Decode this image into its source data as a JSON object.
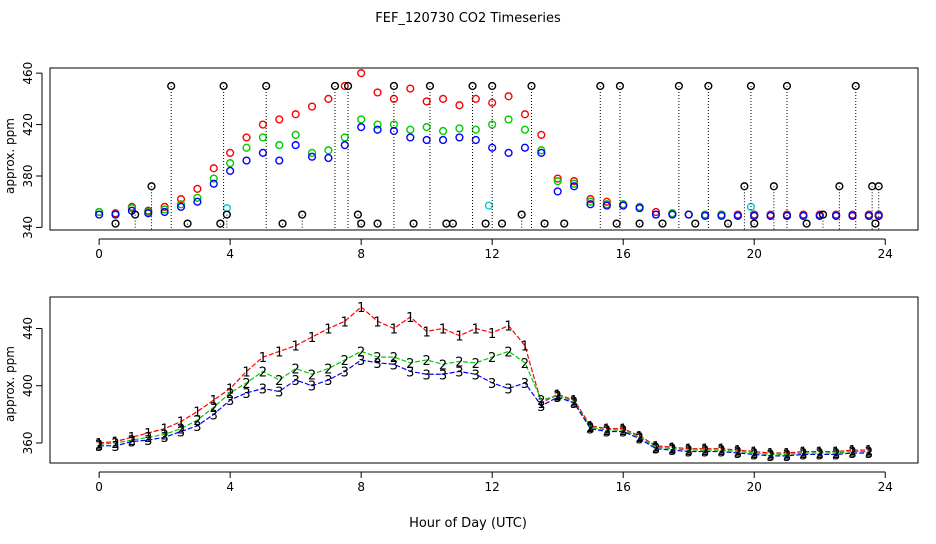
{
  "figure": {
    "title": "FEF_120730  CO2 Timeseries",
    "xlabel": "Hour of Day (UTC)"
  },
  "colors": {
    "series1": "#ff0000",
    "series2": "#00cc00",
    "series3": "#0000ff",
    "series4": "#00cccc",
    "extra": "#000000",
    "dropline": "#000000"
  },
  "chart_data": [
    {
      "type": "scatter",
      "panel": "top",
      "title": "FEF_120730  CO2 Timeseries",
      "ylabel": "approx. ppm",
      "xlim": [
        -1.5,
        25
      ],
      "ylim": [
        338,
        464
      ],
      "xticks": [
        0,
        4,
        8,
        12,
        16,
        20,
        24
      ],
      "yticks": [
        340,
        380,
        420,
        460
      ],
      "series": [
        {
          "color_key": "series1",
          "x": [
            0,
            0.5,
            1,
            1.5,
            2,
            2.5,
            3,
            3.5,
            4,
            4.5,
            5,
            5.5,
            6,
            6.5,
            7,
            7.5,
            8,
            8.5,
            9,
            9.5,
            10,
            10.5,
            11,
            11.5,
            12,
            12.5,
            13,
            13.5,
            14,
            14.5,
            15,
            15.5,
            16,
            16.5,
            17,
            17.5,
            18,
            18.5,
            19,
            19.5,
            20,
            20.5,
            21,
            21.5,
            22,
            22.5,
            23,
            23.5,
            23.8
          ],
          "y": [
            352,
            351,
            356,
            353,
            356,
            362,
            370,
            386,
            398,
            410,
            420,
            424,
            428,
            434,
            440,
            450,
            460,
            445,
            440,
            448,
            438,
            440,
            435,
            440,
            437,
            442,
            428,
            412,
            378,
            376,
            362,
            360,
            358,
            356,
            352,
            351,
            350,
            350,
            350,
            350,
            350,
            350,
            350,
            350,
            350,
            350,
            350,
            350,
            350
          ]
        },
        {
          "color_key": "series2",
          "x": [
            0,
            0.5,
            1,
            1.5,
            2,
            2.5,
            3,
            3.5,
            4,
            4.5,
            5,
            5.5,
            6,
            6.5,
            7,
            7.5,
            8,
            8.5,
            9,
            9.5,
            10,
            10.5,
            11,
            11.5,
            12,
            12.5,
            13,
            13.5,
            14,
            14.5,
            15,
            15.5,
            16,
            16.5,
            17,
            17.5,
            18,
            18.5,
            19,
            19.5,
            20,
            20.5,
            21,
            21.5,
            22,
            22.5,
            23,
            23.5,
            23.8
          ],
          "y": [
            352,
            350,
            355,
            352,
            354,
            358,
            363,
            378,
            390,
            402,
            410,
            404,
            412,
            398,
            400,
            410,
            424,
            420,
            420,
            416,
            418,
            415,
            417,
            416,
            420,
            424,
            416,
            400,
            376,
            374,
            360,
            358,
            358,
            356,
            350,
            351,
            350,
            350,
            350,
            349,
            349,
            349,
            349,
            349,
            349,
            349,
            349,
            349,
            349
          ]
        },
        {
          "color_key": "series3",
          "x": [
            0,
            0.5,
            1,
            1.5,
            2,
            2.5,
            3,
            3.5,
            4,
            4.5,
            5,
            5.5,
            6,
            6.5,
            7,
            7.5,
            8,
            8.5,
            9,
            9.5,
            10,
            10.5,
            11,
            11.5,
            12,
            12.5,
            13,
            13.5,
            14,
            14.5,
            15,
            15.5,
            16,
            16.5,
            17,
            17.5,
            18,
            18.5,
            19,
            19.5,
            20,
            20.5,
            21,
            21.5,
            22,
            22.5,
            23,
            23.5,
            23.8
          ],
          "y": [
            350,
            350,
            353,
            351,
            352,
            356,
            360,
            374,
            384,
            392,
            398,
            392,
            404,
            395,
            394,
            404,
            418,
            416,
            415,
            410,
            408,
            408,
            410,
            408,
            402,
            398,
            402,
            398,
            368,
            372,
            358,
            357,
            357,
            355,
            350,
            350,
            350,
            349,
            349,
            349,
            349,
            349,
            349,
            349,
            349,
            349,
            349,
            349,
            349
          ]
        },
        {
          "color_key": "series4",
          "x": [
            3.9,
            11.9,
            19.9
          ],
          "y": [
            355,
            357,
            356
          ]
        },
        {
          "color_key": "extra",
          "dropline": true,
          "x": [
            0.5,
            1.1,
            1.6,
            2.2,
            2.7,
            3.7,
            3.9,
            3.8,
            5.1,
            5.6,
            6.2,
            7.2,
            7.6,
            7.9,
            8.0,
            8.5,
            9.0,
            9.6,
            10.1,
            10.6,
            10.8,
            11.4,
            11.8,
            12.0,
            12.3,
            12.9,
            13.2,
            13.6,
            14.2,
            15.3,
            15.8,
            15.9,
            16.5,
            17.2,
            17.7,
            18.2,
            18.6,
            19.2,
            19.7,
            19.9,
            20.0,
            20.6,
            21.0,
            21.6,
            22.1,
            22.6,
            23.1,
            23.6,
            23.7,
            23.8
          ],
          "y": [
            343,
            350,
            372,
            450,
            343,
            343,
            350,
            450,
            450,
            343,
            350,
            450,
            450,
            350,
            343,
            343,
            450,
            343,
            450,
            343,
            343,
            450,
            343,
            450,
            343,
            350,
            450,
            343,
            343,
            450,
            343,
            450,
            343,
            343,
            450,
            343,
            450,
            343,
            372,
            450,
            343,
            372,
            450,
            343,
            350,
            372,
            450,
            372,
            343,
            372
          ]
        }
      ]
    },
    {
      "type": "line",
      "panel": "bottom",
      "ylabel": "approx. ppm",
      "xlim": [
        -1.5,
        25
      ],
      "ylim": [
        346,
        462
      ],
      "xticks": [
        0,
        4,
        8,
        12,
        16,
        20,
        24
      ],
      "yticks": [
        360,
        400,
        440
      ],
      "series": [
        {
          "label": "1",
          "color_key": "series1",
          "x": [
            0,
            0.5,
            1,
            1.5,
            2,
            2.5,
            3,
            3.5,
            4,
            4.5,
            5,
            5.5,
            6,
            6.5,
            7,
            7.5,
            8,
            8.5,
            9,
            9.5,
            10,
            10.5,
            11,
            11.5,
            12,
            12.5,
            13,
            13.5,
            14,
            14.5,
            15,
            15.5,
            16,
            16.5,
            17,
            17.5,
            18,
            18.5,
            19,
            19.5,
            20,
            20.5,
            21,
            21.5,
            22,
            22.5,
            23,
            23.5
          ],
          "y": [
            360,
            361,
            364,
            367,
            370,
            375,
            382,
            390,
            398,
            410,
            420,
            424,
            428,
            434,
            440,
            445,
            455,
            445,
            440,
            448,
            438,
            440,
            435,
            440,
            437,
            442,
            428,
            388,
            394,
            390,
            372,
            370,
            370,
            365,
            358,
            357,
            356,
            356,
            356,
            355,
            354,
            353,
            353,
            354,
            354,
            354,
            355,
            355
          ]
        },
        {
          "label": "2",
          "color_key": "series2",
          "x": [
            0,
            0.5,
            1,
            1.5,
            2,
            2.5,
            3,
            3.5,
            4,
            4.5,
            5,
            5.5,
            6,
            6.5,
            7,
            7.5,
            8,
            8.5,
            9,
            9.5,
            10,
            10.5,
            11,
            11.5,
            12,
            12.5,
            13,
            13.5,
            14,
            14.5,
            15,
            15.5,
            16,
            16.5,
            17,
            17.5,
            18,
            18.5,
            19,
            19.5,
            20,
            20.5,
            21,
            21.5,
            22,
            22.5,
            23,
            23.5
          ],
          "y": [
            359,
            360,
            362,
            364,
            366,
            370,
            376,
            385,
            395,
            402,
            410,
            404,
            412,
            408,
            412,
            418,
            424,
            420,
            420,
            416,
            418,
            415,
            417,
            416,
            420,
            424,
            416,
            390,
            393,
            389,
            371,
            369,
            369,
            364,
            357,
            356,
            355,
            355,
            355,
            354,
            353,
            352,
            352,
            353,
            353,
            353,
            354,
            354
          ]
        },
        {
          "label": "3",
          "color_key": "series3",
          "x": [
            0,
            0.5,
            1,
            1.5,
            2,
            2.5,
            3,
            3.5,
            4,
            4.5,
            5,
            5.5,
            6,
            6.5,
            7,
            7.5,
            8,
            8.5,
            9,
            9.5,
            10,
            10.5,
            11,
            11.5,
            12,
            12.5,
            13,
            13.5,
            14,
            14.5,
            15,
            15.5,
            16,
            16.5,
            17,
            17.5,
            18,
            18.5,
            19,
            19.5,
            20,
            20.5,
            21,
            21.5,
            22,
            22.5,
            23,
            23.5
          ],
          "y": [
            358,
            358,
            361,
            362,
            364,
            368,
            372,
            380,
            390,
            395,
            398,
            396,
            404,
            400,
            404,
            410,
            418,
            416,
            415,
            410,
            408,
            408,
            410,
            408,
            402,
            398,
            402,
            386,
            392,
            388,
            370,
            368,
            368,
            363,
            356,
            355,
            354,
            354,
            354,
            353,
            352,
            351,
            351,
            352,
            352,
            352,
            353,
            353
          ]
        }
      ]
    }
  ]
}
